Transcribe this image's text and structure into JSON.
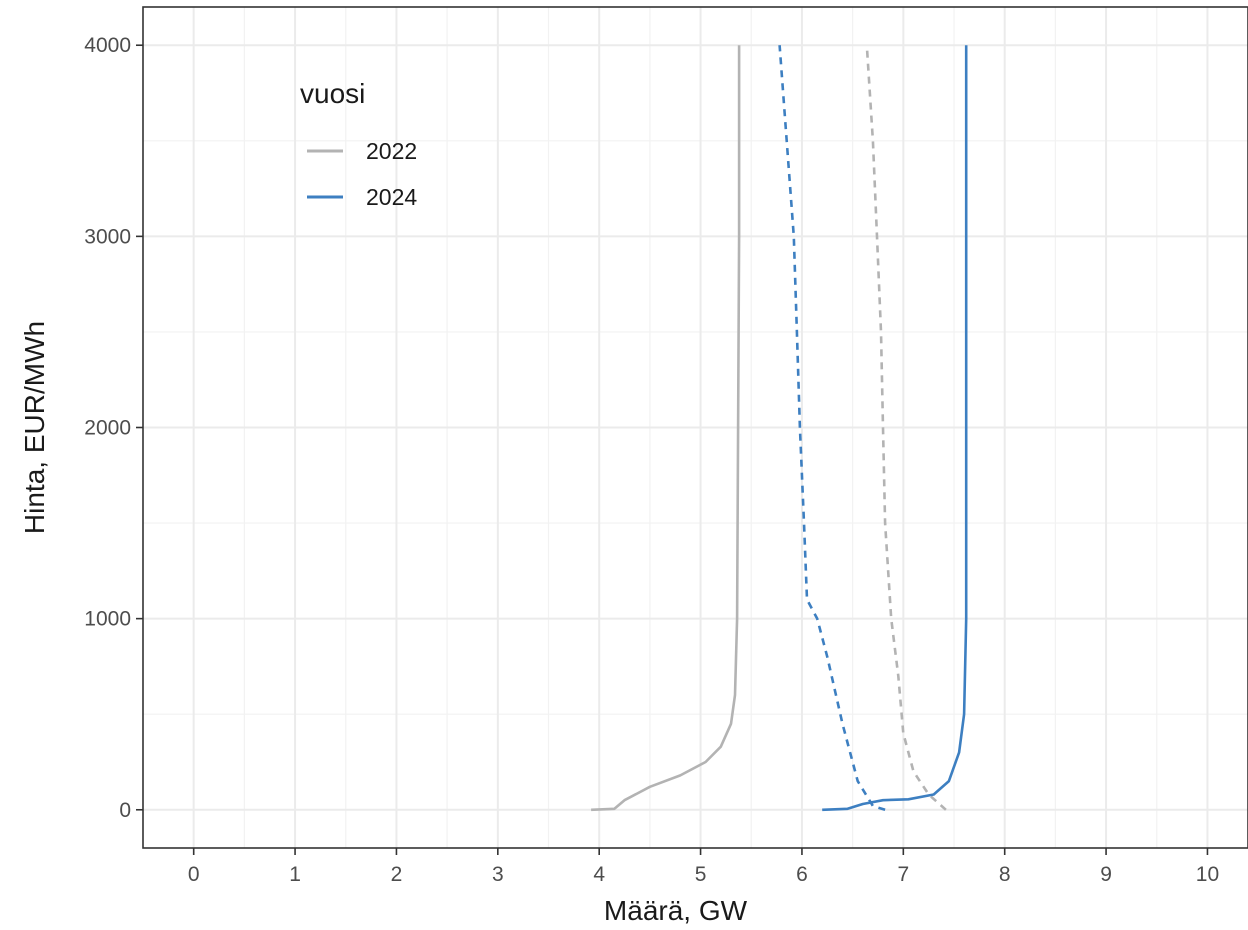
{
  "chart_data": {
    "type": "line",
    "title": "",
    "xlabel": "Määrä, GW",
    "ylabel": "Hinta, EUR/MWh",
    "xlim": [
      -0.5,
      10.4
    ],
    "ylim": [
      -200,
      4200
    ],
    "x_ticks": [
      0,
      1,
      2,
      3,
      4,
      5,
      6,
      7,
      8,
      9,
      10
    ],
    "y_ticks": [
      0,
      1000,
      2000,
      3000,
      4000
    ],
    "grid": true,
    "legend": {
      "title": "vuosi",
      "position": "top-left",
      "entries": [
        {
          "label": "2022",
          "color": "#b3b3b3"
        },
        {
          "label": "2024",
          "color": "#3d7fc1"
        }
      ]
    },
    "series": [
      {
        "name": "2022",
        "style": "solid",
        "color": "#b3b3b3",
        "points": [
          [
            3.92,
            0
          ],
          [
            4.15,
            5
          ],
          [
            4.25,
            50
          ],
          [
            4.5,
            120
          ],
          [
            4.8,
            180
          ],
          [
            5.05,
            250
          ],
          [
            5.2,
            330
          ],
          [
            5.3,
            450
          ],
          [
            5.34,
            600
          ],
          [
            5.36,
            1000
          ],
          [
            5.37,
            2000
          ],
          [
            5.38,
            3000
          ],
          [
            5.38,
            4000
          ]
        ]
      },
      {
        "name": "2022",
        "style": "dashed",
        "color": "#b3b3b3",
        "points": [
          [
            7.42,
            0
          ],
          [
            7.25,
            80
          ],
          [
            7.1,
            200
          ],
          [
            7.0,
            400
          ],
          [
            6.95,
            700
          ],
          [
            6.88,
            1000
          ],
          [
            6.82,
            1500
          ],
          [
            6.8,
            2000
          ],
          [
            6.78,
            2500
          ],
          [
            6.74,
            3000
          ],
          [
            6.7,
            3500
          ],
          [
            6.64,
            4000
          ]
        ]
      },
      {
        "name": "2024",
        "style": "solid",
        "color": "#3d7fc1",
        "points": [
          [
            6.2,
            0
          ],
          [
            6.45,
            5
          ],
          [
            6.6,
            30
          ],
          [
            6.8,
            50
          ],
          [
            7.05,
            55
          ],
          [
            7.3,
            80
          ],
          [
            7.45,
            150
          ],
          [
            7.55,
            300
          ],
          [
            7.6,
            500
          ],
          [
            7.62,
            1000
          ],
          [
            7.62,
            2000
          ],
          [
            7.62,
            3000
          ],
          [
            7.62,
            4000
          ]
        ]
      },
      {
        "name": "2024",
        "style": "dashed",
        "color": "#3d7fc1",
        "points": [
          [
            6.82,
            0
          ],
          [
            6.7,
            20
          ],
          [
            6.55,
            150
          ],
          [
            6.4,
            450
          ],
          [
            6.25,
            800
          ],
          [
            6.15,
            1000
          ],
          [
            6.05,
            1100
          ],
          [
            6.02,
            1500
          ],
          [
            5.98,
            2000
          ],
          [
            5.95,
            2500
          ],
          [
            5.92,
            3000
          ],
          [
            5.85,
            3500
          ],
          [
            5.78,
            4000
          ]
        ]
      }
    ]
  }
}
